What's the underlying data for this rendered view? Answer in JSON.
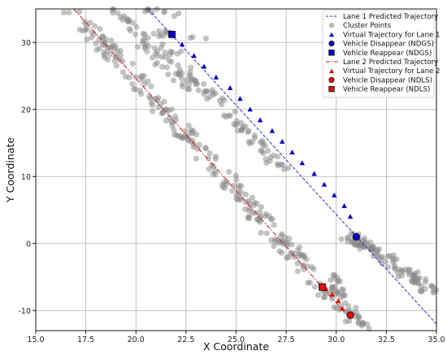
{
  "chart_data": {
    "type": "scatter",
    "xlabel": "X Coordinate",
    "ylabel": "Y Coordinate",
    "xlim": [
      15.0,
      35.0
    ],
    "ylim": [
      -13,
      35
    ],
    "x_ticks": [
      "15.0",
      "17.5",
      "20.0",
      "22.5",
      "25.0",
      "27.5",
      "30.0",
      "32.5",
      "35.0"
    ],
    "y_ticks": [
      "-10",
      "0",
      "10",
      "20",
      "30"
    ],
    "grid": true,
    "legend_position": "top-right",
    "colors": {
      "lane1": "#0000cc",
      "lane2": "#dd1111",
      "cluster": "#888888"
    },
    "legend": [
      {
        "label": "Lane 1 Predicted Trajectory",
        "marker": "dashed-line",
        "color": "#2233dd"
      },
      {
        "label": "Cluster Points",
        "marker": "circle",
        "color": "#999999"
      },
      {
        "label": "Virtual Trajectory for Lane 1",
        "marker": "triangle",
        "color": "#0000cc"
      },
      {
        "label": "Vehicle Disappear (NDGS)",
        "marker": "circle",
        "color": "#0000cc"
      },
      {
        "label": "Vehicle Reappear (NDGS)",
        "marker": "square",
        "color": "#0000cc"
      },
      {
        "label": "Lane 2 Predicted Trajectory",
        "marker": "dashdot-line",
        "color": "#dd1111"
      },
      {
        "label": "Virtual Trajectory for Lane 2",
        "marker": "triangle",
        "color": "#dd1111"
      },
      {
        "label": "Vehicle Disappear (NDLS)",
        "marker": "circle",
        "color": "#dd1111"
      },
      {
        "label": "Vehicle Reappear (NDLS)",
        "marker": "square",
        "color": "#dd1111"
      }
    ],
    "series": [
      {
        "name": "Lane 1 Predicted Trajectory",
        "kind": "line",
        "x": [
          20.6,
          35.0
        ],
        "y": [
          35.0,
          -12.0
        ]
      },
      {
        "name": "Lane 2 Predicted Trajectory",
        "kind": "line",
        "x": [
          16.9,
          30.4
        ],
        "y": [
          35.0,
          -10.2
        ]
      },
      {
        "name": "Virtual Trajectory for Lane 1",
        "kind": "triangle",
        "x": [
          22.3,
          22.9,
          23.4,
          24.0,
          24.7,
          25.2,
          25.7,
          26.2,
          26.8,
          27.3,
          27.8,
          28.3,
          28.9,
          29.4,
          29.9,
          30.4,
          30.7
        ],
        "y": [
          29.7,
          28.0,
          26.4,
          24.8,
          23.2,
          21.6,
          20.0,
          18.4,
          16.8,
          15.2,
          13.6,
          12.0,
          10.4,
          8.8,
          7.2,
          5.6,
          4.0
        ]
      },
      {
        "name": "Virtual Trajectory for Lane 2",
        "kind": "triangle",
        "x": [
          29.5,
          29.8,
          30.1,
          30.3
        ],
        "y": [
          -6.8,
          -7.6,
          -8.6,
          -9.7
        ]
      },
      {
        "name": "Vehicle Disappear (NDGS)",
        "kind": "circle",
        "x": [
          31.0
        ],
        "y": [
          1.0
        ]
      },
      {
        "name": "Vehicle Reappear (NDGS)",
        "kind": "square",
        "x": [
          21.8
        ],
        "y": [
          31.2
        ]
      },
      {
        "name": "Vehicle Disappear (NDLS)",
        "kind": "circle",
        "x": [
          30.7
        ],
        "y": [
          -10.7
        ]
      },
      {
        "name": "Vehicle Reappear (NDLS)",
        "kind": "square",
        "x": [
          29.3
        ],
        "y": [
          -6.5
        ]
      }
    ],
    "clusters": [
      {
        "from": [
          16.8,
          35.0
        ],
        "to": [
          31.0,
          -12.0
        ],
        "spread": 1.1,
        "count": 260
      },
      {
        "from": [
          18.8,
          35.0
        ],
        "to": [
          23.0,
          22.0
        ],
        "spread": 1.0,
        "count": 60
      },
      {
        "from": [
          21.0,
          31.5
        ],
        "to": [
          27.5,
          10.0
        ],
        "spread": 0.8,
        "count": 80
      },
      {
        "from": [
          20.4,
          35.0
        ],
        "to": [
          22.4,
          34.0
        ],
        "spread": 0.5,
        "count": 12
      },
      {
        "from": [
          21.2,
          31.5
        ],
        "to": [
          23.5,
          30.5
        ],
        "spread": 0.5,
        "count": 10
      },
      {
        "from": [
          30.6,
          1.5
        ],
        "to": [
          35.0,
          -7.5
        ],
        "spread": 1.0,
        "count": 90
      },
      {
        "from": [
          30.3,
          0.5
        ],
        "to": [
          32.0,
          -1.0
        ],
        "spread": 0.6,
        "count": 20
      },
      {
        "from": [
          29.6,
          -4.0
        ],
        "to": [
          31.4,
          -12.5
        ],
        "spread": 0.5,
        "count": 30
      }
    ]
  }
}
